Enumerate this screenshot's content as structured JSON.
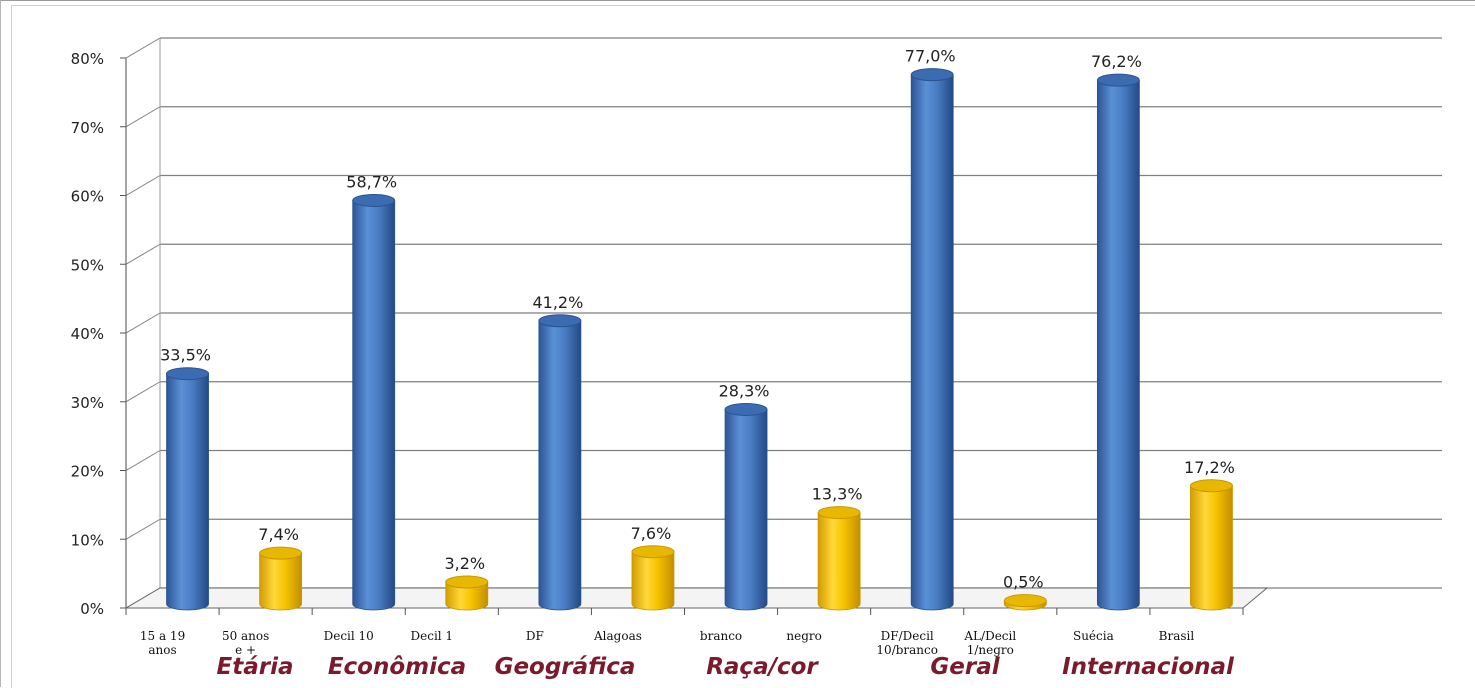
{
  "chart_data": {
    "type": "bar",
    "title": "",
    "xlabel": "",
    "ylabel": "",
    "ylim": [
      0,
      80
    ],
    "y_ticks": [
      "0%",
      "10%",
      "20%",
      "30%",
      "40%",
      "50%",
      "60%",
      "70%",
      "80%"
    ],
    "grid": true,
    "style": "3d-cylinder",
    "bars": [
      {
        "label": [
          "15 a 19",
          "anos"
        ],
        "value": 33.5,
        "value_label": "33,5%",
        "color": "blue"
      },
      {
        "label": [
          "50 anos",
          "e +"
        ],
        "value": 7.4,
        "value_label": "7,4%",
        "color": "yellow"
      },
      {
        "label": [
          "Decil 10"
        ],
        "value": 58.7,
        "value_label": "58,7%",
        "color": "blue"
      },
      {
        "label": [
          "Decil 1"
        ],
        "value": 3.2,
        "value_label": "3,2%",
        "color": "yellow"
      },
      {
        "label": [
          "DF"
        ],
        "value": 41.2,
        "value_label": "41,2%",
        "color": "blue"
      },
      {
        "label": [
          "Alagoas"
        ],
        "value": 7.6,
        "value_label": "7,6%",
        "color": "yellow"
      },
      {
        "label": [
          "branco"
        ],
        "value": 28.3,
        "value_label": "28,3%",
        "color": "blue"
      },
      {
        "label": [
          "negro"
        ],
        "value": 13.3,
        "value_label": "13,3%",
        "color": "yellow"
      },
      {
        "label": [
          "DF/Decil",
          "10/branco"
        ],
        "value": 77.0,
        "value_label": "77,0%",
        "color": "blue"
      },
      {
        "label": [
          "AL/Decil",
          "1/negro"
        ],
        "value": 0.5,
        "value_label": "0,5%",
        "color": "yellow"
      },
      {
        "label": [
          "Suécia"
        ],
        "value": 76.2,
        "value_label": "76,2%",
        "color": "blue"
      },
      {
        "label": [
          "Brasil"
        ],
        "value": 17.2,
        "value_label": "17,2%",
        "color": "yellow"
      }
    ],
    "groups": [
      "Etária",
      "Econômica",
      "Geográfica",
      "Raça/cor",
      "Geral",
      "Internacional"
    ],
    "colors": {
      "blue": "#4a7ec4",
      "blue_dark": "#2a5290",
      "yellow": "#f7c400",
      "yellow_dark": "#c99500",
      "group_text": "#7a1a2c"
    }
  }
}
